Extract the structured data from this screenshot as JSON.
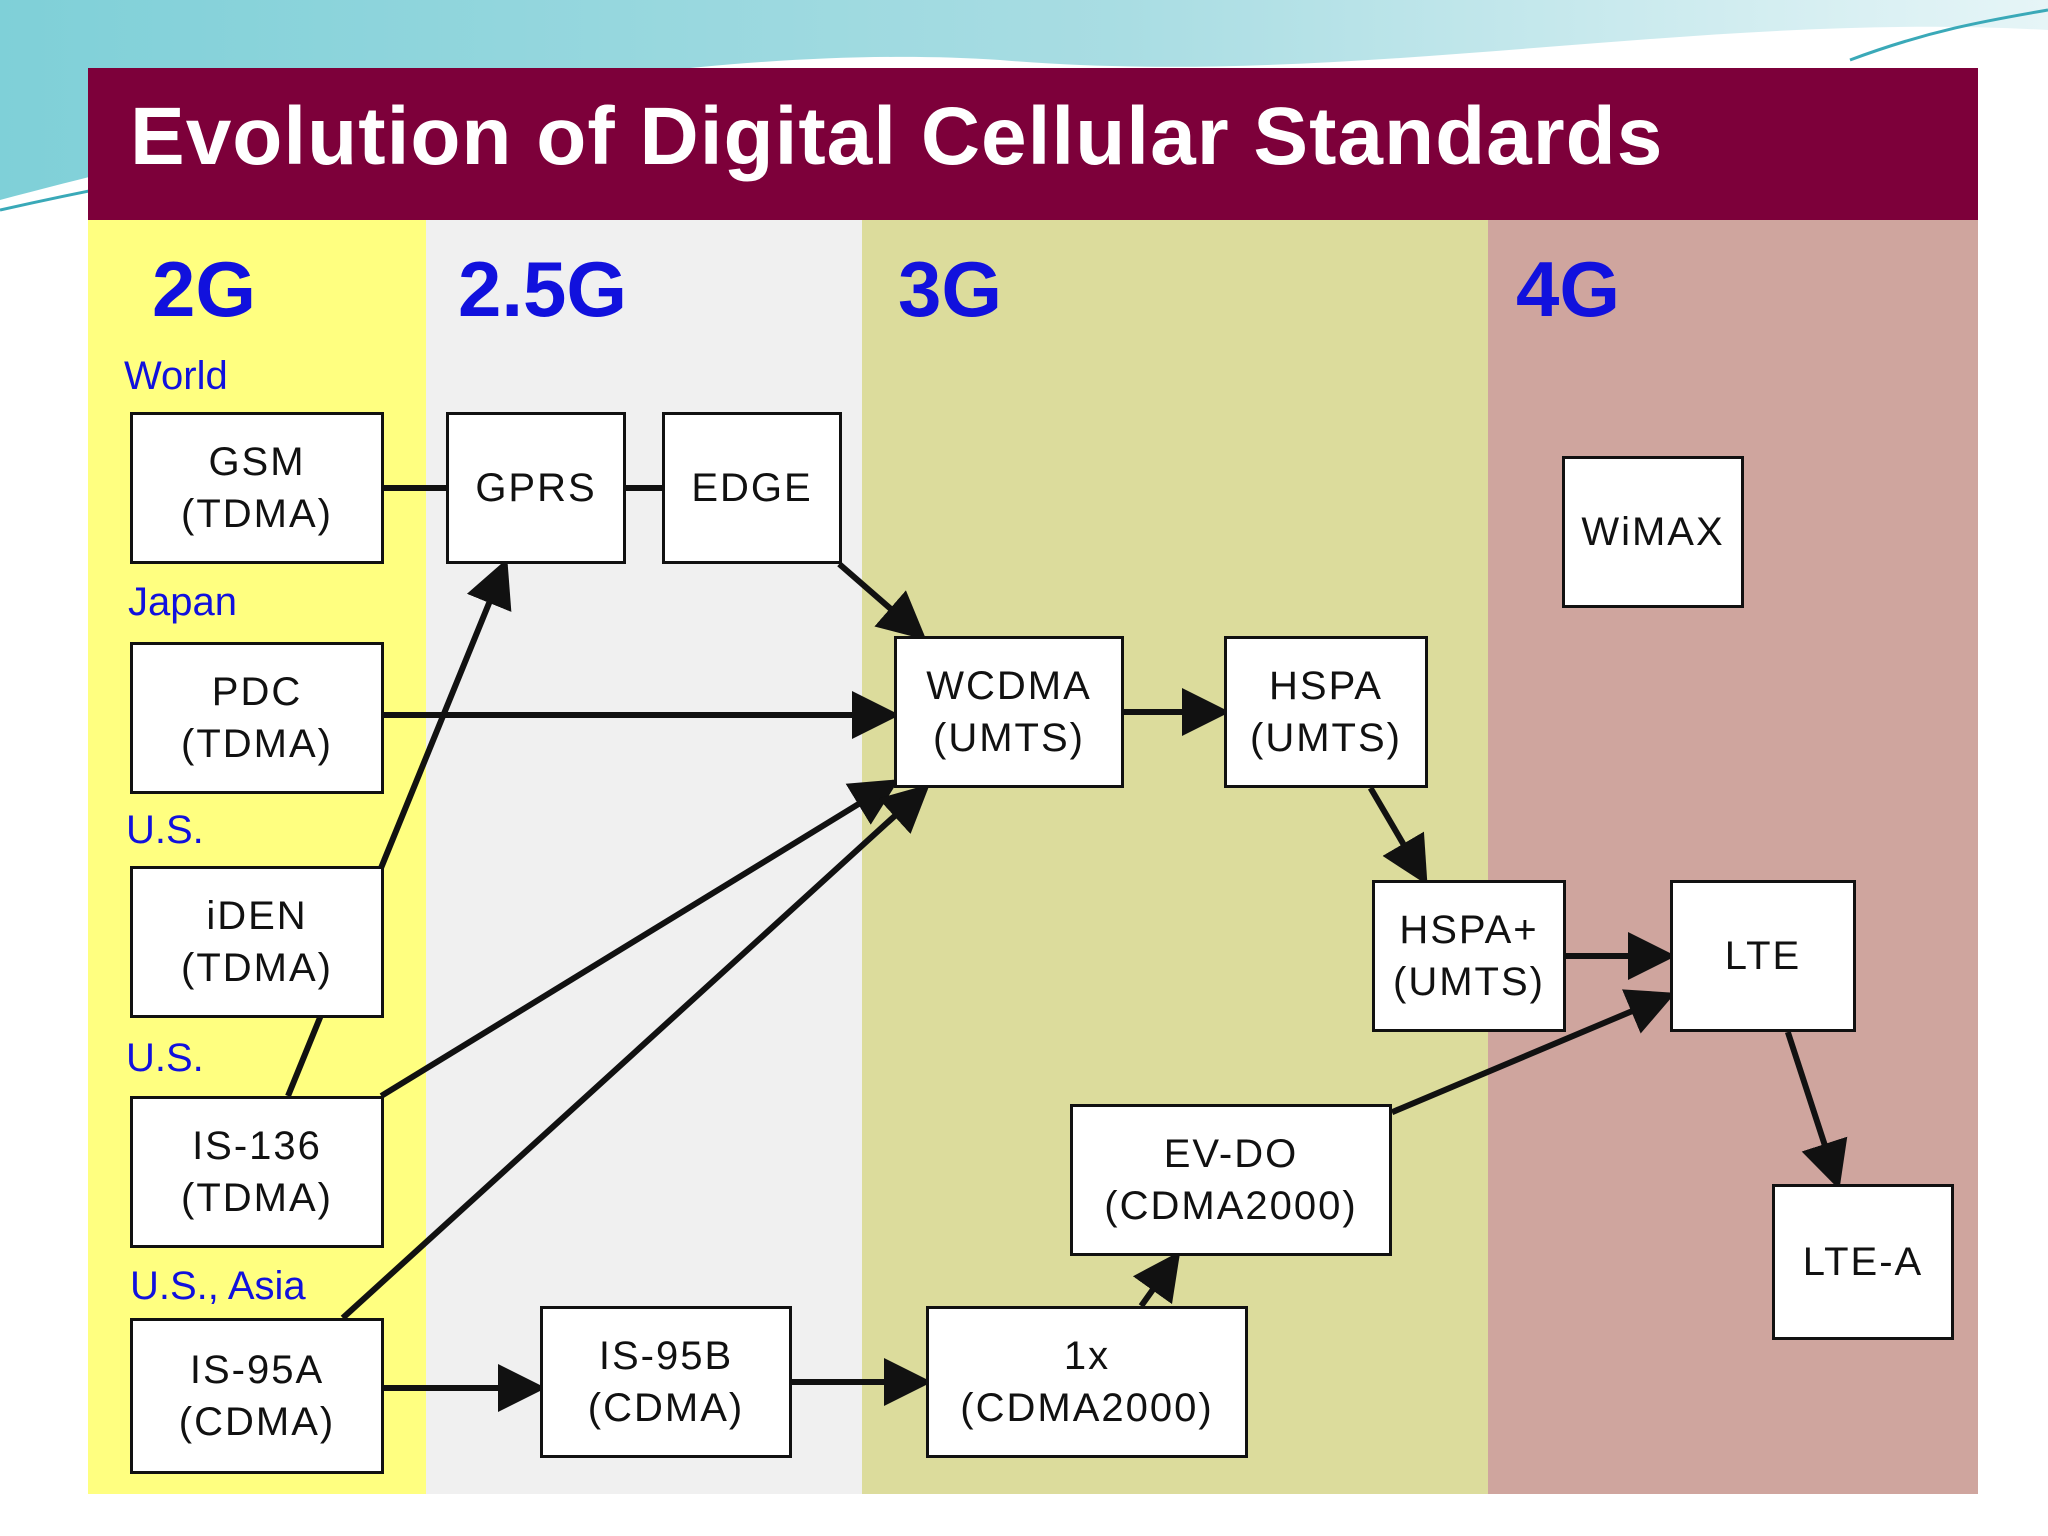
{
  "slide": {
    "title": "Evolution of Digital Cellular Standards"
  },
  "colors": {
    "title_bar": "#7d003a",
    "band_2g": "#ffff80",
    "band_25g": "#f0f0f0",
    "band_3g": "#dcdc9c",
    "band_4g": "#cfa59e",
    "label_blue": "#1111dd",
    "line": "#111111"
  },
  "generations": [
    {
      "id": "2g",
      "label": "2G"
    },
    {
      "id": "25g",
      "label": "2.5G"
    },
    {
      "id": "3g",
      "label": "3G"
    },
    {
      "id": "4g",
      "label": "4G"
    }
  ],
  "regions": {
    "world": "World",
    "japan": "Japan",
    "us1": "U.S.",
    "us2": "U.S.",
    "us_asia": "U.S., Asia"
  },
  "standards": {
    "gsm": {
      "line1": "GSM",
      "line2": "(TDMA)"
    },
    "pdc": {
      "line1": "PDC",
      "line2": "(TDMA)"
    },
    "iden": {
      "line1": "iDEN",
      "line2": "(TDMA)"
    },
    "is136": {
      "line1": "IS-136",
      "line2": "(TDMA)"
    },
    "is95a": {
      "line1": "IS-95A",
      "line2": "(CDMA)"
    },
    "gprs": {
      "line1": "GPRS"
    },
    "edge": {
      "line1": "EDGE"
    },
    "is95b": {
      "line1": "IS-95B",
      "line2": "(CDMA)"
    },
    "wcdma": {
      "line1": "WCDMA",
      "line2": "(UMTS)"
    },
    "hspa": {
      "line1": "HSPA",
      "line2": "(UMTS)"
    },
    "hspaplus": {
      "line1": "HSPA+",
      "line2": "(UMTS)"
    },
    "evdo": {
      "line1": "EV-DO",
      "line2": "(CDMA2000)"
    },
    "cdma1x": {
      "line1": "1x",
      "line2": "(CDMA2000)"
    },
    "wimax": {
      "line1": "WiMAX"
    },
    "lte": {
      "line1": "LTE"
    },
    "ltea": {
      "line1": "LTE-A"
    }
  },
  "connections": [
    {
      "from": "gsm",
      "to": "gprs",
      "arrow": false
    },
    {
      "from": "gprs",
      "to": "edge",
      "arrow": false
    },
    {
      "from": "edge",
      "to": "wcdma",
      "arrow": true
    },
    {
      "from": "pdc",
      "to": "wcdma",
      "arrow": true
    },
    {
      "from": "is136",
      "to": "gprs",
      "arrow": true
    },
    {
      "from": "is136",
      "to": "wcdma",
      "arrow": true
    },
    {
      "from": "is95a",
      "to": "wcdma",
      "arrow": true
    },
    {
      "from": "is95a",
      "to": "is95b",
      "arrow": true
    },
    {
      "from": "is95b",
      "to": "cdma1x",
      "arrow": true
    },
    {
      "from": "cdma1x",
      "to": "evdo",
      "arrow": true
    },
    {
      "from": "wcdma",
      "to": "hspa",
      "arrow": true
    },
    {
      "from": "hspa",
      "to": "hspaplus",
      "arrow": true
    },
    {
      "from": "hspaplus",
      "to": "lte",
      "arrow": true
    },
    {
      "from": "evdo",
      "to": "lte",
      "arrow": true
    },
    {
      "from": "lte",
      "to": "ltea",
      "arrow": true
    }
  ]
}
